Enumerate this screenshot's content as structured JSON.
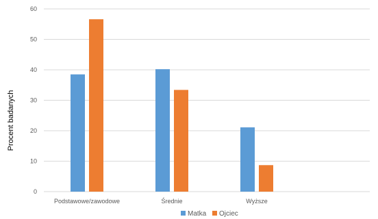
{
  "chart_data": {
    "type": "bar",
    "title": "",
    "xlabel": "",
    "ylabel": "Procent badanych",
    "ylim": [
      0,
      60
    ],
    "yticks": [
      0,
      10,
      20,
      30,
      40,
      50,
      60
    ],
    "grid": true,
    "legend_position": "bottom",
    "categories": [
      "Podstawowe/zawodowe",
      "Średnie",
      "Wyższe"
    ],
    "series": [
      {
        "name": "Matka",
        "color": "#5b9bd5",
        "values": [
          38.5,
          40.2,
          21.1
        ]
      },
      {
        "name": "Ojciec",
        "color": "#ed7d31",
        "values": [
          56.6,
          33.4,
          8.7
        ]
      }
    ]
  }
}
